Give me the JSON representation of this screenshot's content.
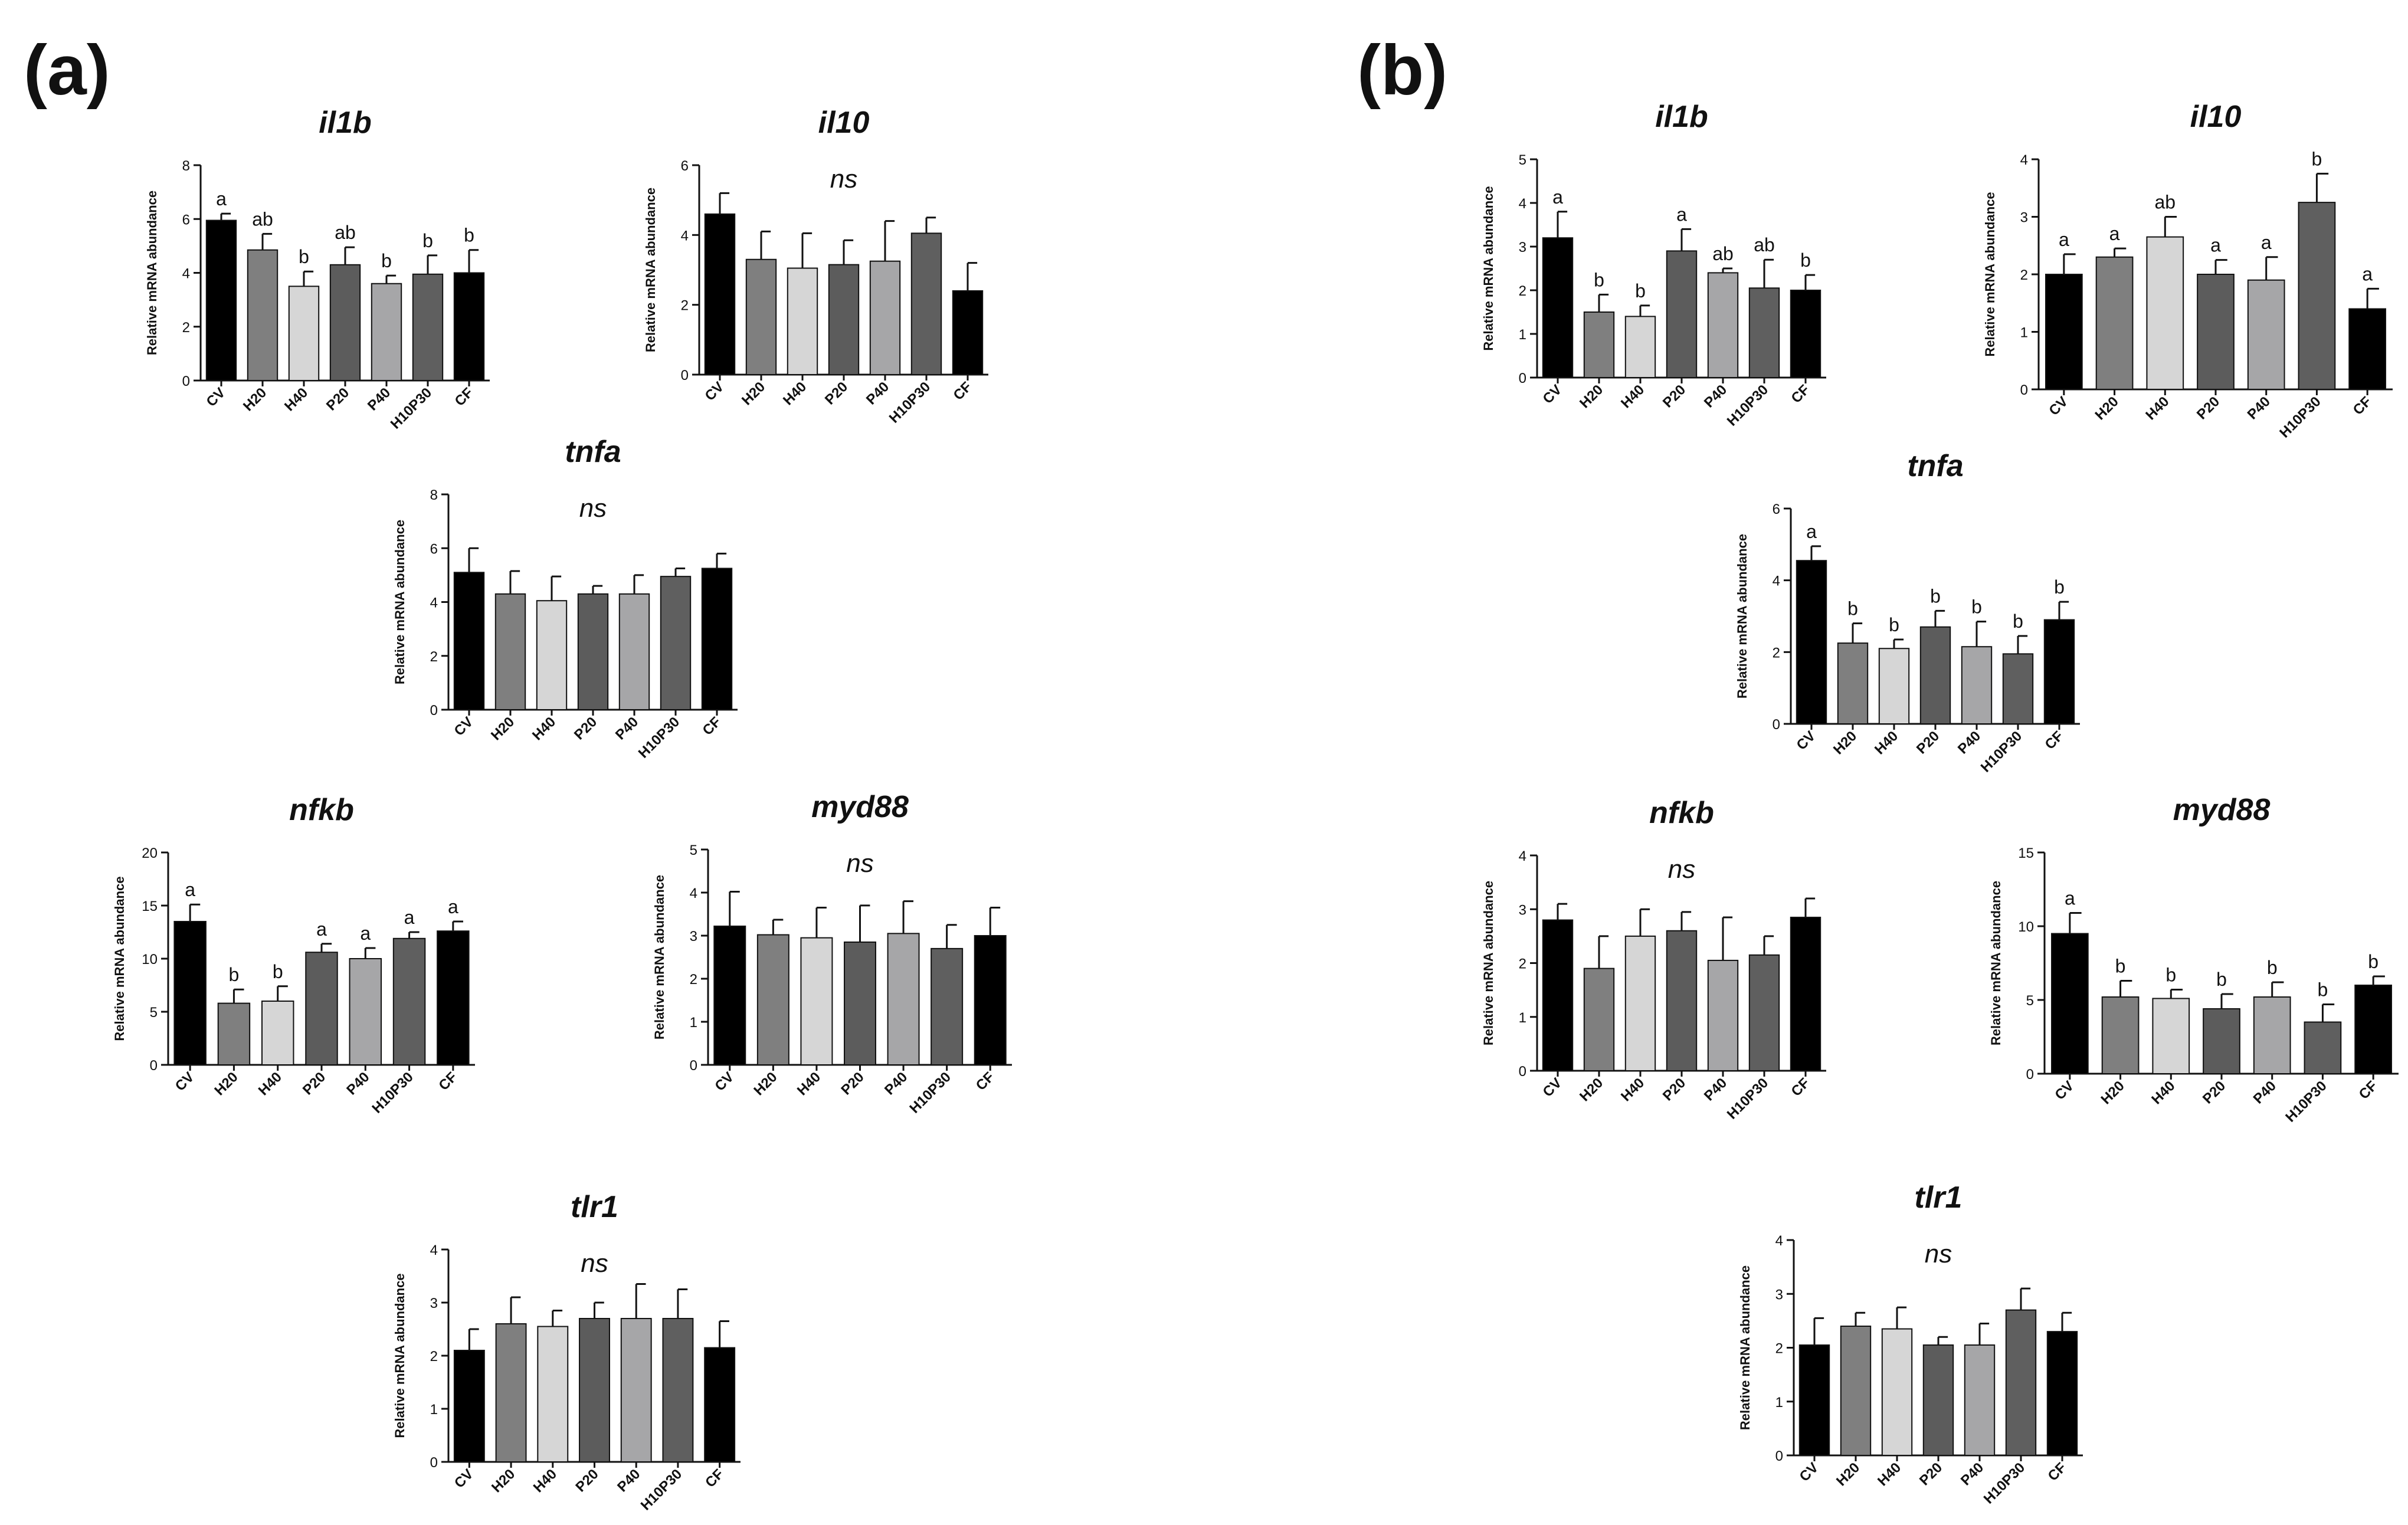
{
  "figure": {
    "panels": [
      "(a)",
      "(b)"
    ],
    "colors": {
      "CV": "#000000",
      "H20": "#7f7f7f",
      "H40": "#d6d6d6",
      "P20": "#5c5c5c",
      "P40": "#a6a6a8",
      "H10P30": "#5f5f5f",
      "CF": "#000000"
    }
  },
  "chart_data": [
    {
      "panel": "a",
      "gene": "il1b",
      "type": "bar",
      "title": "il1b",
      "ylabel": "Relative mRNA abundance",
      "categories": [
        "CV",
        "H20",
        "H40",
        "P20",
        "P40",
        "H10P30",
        "CF"
      ],
      "values": [
        5.95,
        4.85,
        3.5,
        4.3,
        3.6,
        3.95,
        4.0
      ],
      "errors": [
        0.25,
        0.6,
        0.55,
        0.65,
        0.3,
        0.7,
        0.85
      ],
      "letters": [
        "a",
        "ab",
        "b",
        "ab",
        "b",
        "b",
        "b"
      ],
      "ns": "",
      "ylim": [
        0,
        8
      ],
      "yticks": [
        "0",
        "2",
        "4",
        "6",
        "8"
      ]
    },
    {
      "panel": "a",
      "gene": "il10",
      "type": "bar",
      "title": "il10",
      "ylabel": "Relative mRNA abundance",
      "categories": [
        "CV",
        "H20",
        "H40",
        "P20",
        "P40",
        "H10P30",
        "CF"
      ],
      "values": [
        4.6,
        3.3,
        3.05,
        3.15,
        3.25,
        4.05,
        2.4
      ],
      "errors": [
        0.6,
        0.8,
        1.0,
        0.7,
        1.15,
        0.45,
        0.8
      ],
      "letters": [],
      "ns": "ns",
      "ylim": [
        0,
        6
      ],
      "yticks": [
        "0",
        "2",
        "4",
        "6"
      ]
    },
    {
      "panel": "a",
      "gene": "tnfa",
      "type": "bar",
      "title": "tnfa",
      "ylabel": "Relative mRNA abundance",
      "categories": [
        "CV",
        "H20",
        "H40",
        "P20",
        "P40",
        "H10P30",
        "CF"
      ],
      "values": [
        5.1,
        4.3,
        4.05,
        4.3,
        4.3,
        4.95,
        5.25
      ],
      "errors": [
        0.9,
        0.85,
        0.9,
        0.3,
        0.7,
        0.3,
        0.55
      ],
      "letters": [],
      "ns": "ns",
      "ylim": [
        0,
        8
      ],
      "yticks": [
        "0",
        "2",
        "4",
        "6",
        "8"
      ]
    },
    {
      "panel": "a",
      "gene": "nfkb",
      "type": "bar",
      "title": "nfkb",
      "ylabel": "Relative mRNA abundance",
      "categories": [
        "CV",
        "H20",
        "H40",
        "P20",
        "P40",
        "H10P30",
        "CF"
      ],
      "values": [
        13.5,
        5.8,
        6.0,
        10.6,
        10.0,
        11.9,
        12.6
      ],
      "errors": [
        1.6,
        1.3,
        1.4,
        0.8,
        1.0,
        0.6,
        0.9
      ],
      "letters": [
        "a",
        "b",
        "b",
        "a",
        "a",
        "a",
        "a"
      ],
      "ns": "",
      "ylim": [
        0,
        20
      ],
      "yticks": [
        "0",
        "5",
        "10",
        "15",
        "20"
      ]
    },
    {
      "panel": "a",
      "gene": "myd88",
      "type": "bar",
      "title": "myd88",
      "ylabel": "Relative mRNA abundance",
      "categories": [
        "CV",
        "H20",
        "H40",
        "P20",
        "P40",
        "H10P30",
        "CF"
      ],
      "values": [
        3.22,
        3.02,
        2.95,
        2.85,
        3.05,
        2.7,
        3.0
      ],
      "errors": [
        0.8,
        0.35,
        0.7,
        0.85,
        0.75,
        0.55,
        0.65
      ],
      "letters": [],
      "ns": "ns",
      "ylim": [
        0,
        5
      ],
      "yticks": [
        "0",
        "1",
        "2",
        "3",
        "4",
        "5"
      ]
    },
    {
      "panel": "a",
      "gene": "tlr1",
      "type": "bar",
      "title": "tlr1",
      "ylabel": "Relative mRNA abundance",
      "categories": [
        "CV",
        "H20",
        "H40",
        "P20",
        "P40",
        "H10P30",
        "CF"
      ],
      "values": [
        2.1,
        2.6,
        2.55,
        2.7,
        2.7,
        2.7,
        2.15
      ],
      "errors": [
        0.4,
        0.5,
        0.3,
        0.3,
        0.65,
        0.55,
        0.5
      ],
      "letters": [],
      "ns": "ns",
      "ylim": [
        0,
        4
      ],
      "yticks": [
        "0",
        "1",
        "2",
        "3",
        "4"
      ]
    },
    {
      "panel": "b",
      "gene": "il1b",
      "type": "bar",
      "title": "il1b",
      "ylabel": "Relative mRNA abundance",
      "categories": [
        "CV",
        "H20",
        "H40",
        "P20",
        "P40",
        "H10P30",
        "CF"
      ],
      "values": [
        3.2,
        1.5,
        1.4,
        2.9,
        2.4,
        2.05,
        2.0
      ],
      "errors": [
        0.6,
        0.4,
        0.25,
        0.5,
        0.1,
        0.65,
        0.35
      ],
      "letters": [
        "a",
        "b",
        "b",
        "a",
        "ab",
        "ab",
        "b"
      ],
      "ns": "",
      "ylim": [
        0,
        5
      ],
      "yticks": [
        "0",
        "1",
        "2",
        "3",
        "4",
        "5"
      ]
    },
    {
      "panel": "b",
      "gene": "il10",
      "type": "bar",
      "title": "il10",
      "ylabel": "Relative mRNA abundance",
      "categories": [
        "CV",
        "H20",
        "H40",
        "P20",
        "P40",
        "H10P30",
        "CF"
      ],
      "values": [
        2.0,
        2.3,
        2.65,
        2.0,
        1.9,
        3.25,
        1.4
      ],
      "errors": [
        0.35,
        0.15,
        0.35,
        0.25,
        0.4,
        0.5,
        0.35
      ],
      "letters": [
        "a",
        "a",
        "ab",
        "a",
        "a",
        "b",
        "a"
      ],
      "ns": "",
      "ylim": [
        0,
        4
      ],
      "yticks": [
        "0",
        "1",
        "2",
        "3",
        "4"
      ]
    },
    {
      "panel": "b",
      "gene": "tnfa",
      "type": "bar",
      "title": "tnfa",
      "ylabel": "Relative mRNA abundance",
      "categories": [
        "CV",
        "H20",
        "H40",
        "P20",
        "P40",
        "H10P30",
        "CF"
      ],
      "values": [
        4.55,
        2.25,
        2.1,
        2.7,
        2.15,
        1.95,
        2.9
      ],
      "errors": [
        0.4,
        0.55,
        0.25,
        0.45,
        0.7,
        0.5,
        0.5
      ],
      "letters": [
        "a",
        "b",
        "b",
        "b",
        "b",
        "b",
        "b"
      ],
      "ns": "",
      "ylim": [
        0,
        6
      ],
      "yticks": [
        "0",
        "2",
        "4",
        "6"
      ]
    },
    {
      "panel": "b",
      "gene": "nfkb",
      "type": "bar",
      "title": "nfkb",
      "ylabel": "Relative mRNA abundance",
      "categories": [
        "CV",
        "H20",
        "H40",
        "P20",
        "P40",
        "H10P30",
        "CF"
      ],
      "values": [
        2.8,
        1.9,
        2.5,
        2.6,
        2.05,
        2.15,
        2.85
      ],
      "errors": [
        0.3,
        0.6,
        0.5,
        0.35,
        0.8,
        0.35,
        0.35
      ],
      "letters": [],
      "ns": "ns",
      "ylim": [
        0,
        4
      ],
      "yticks": [
        "0",
        "1",
        "2",
        "3",
        "4"
      ]
    },
    {
      "panel": "b",
      "gene": "myd88",
      "type": "bar",
      "title": "myd88",
      "ylabel": "Relative mRNA abundance",
      "categories": [
        "CV",
        "H20",
        "H40",
        "P20",
        "P40",
        "H10P30",
        "CF"
      ],
      "values": [
        9.5,
        5.2,
        5.1,
        4.4,
        5.2,
        3.5,
        6.0
      ],
      "errors": [
        1.4,
        1.1,
        0.6,
        1.0,
        1.0,
        1.2,
        0.6
      ],
      "letters": [
        "a",
        "b",
        "b",
        "b",
        "b",
        "b",
        "b"
      ],
      "ns": "",
      "ylim": [
        0,
        15
      ],
      "yticks": [
        "0",
        "5",
        "10",
        "15"
      ]
    },
    {
      "panel": "b",
      "gene": "tlr1",
      "type": "bar",
      "title": "tlr1",
      "ylabel": "Relative mRNA abundance",
      "categories": [
        "CV",
        "H20",
        "H40",
        "P20",
        "P40",
        "H10P30",
        "CF"
      ],
      "values": [
        2.05,
        2.4,
        2.35,
        2.05,
        2.05,
        2.7,
        2.3
      ],
      "errors": [
        0.5,
        0.25,
        0.4,
        0.15,
        0.4,
        0.4,
        0.35
      ],
      "letters": [],
      "ns": "ns",
      "ylim": [
        0,
        4
      ],
      "yticks": [
        "0",
        "1",
        "2",
        "3",
        "4"
      ]
    }
  ]
}
